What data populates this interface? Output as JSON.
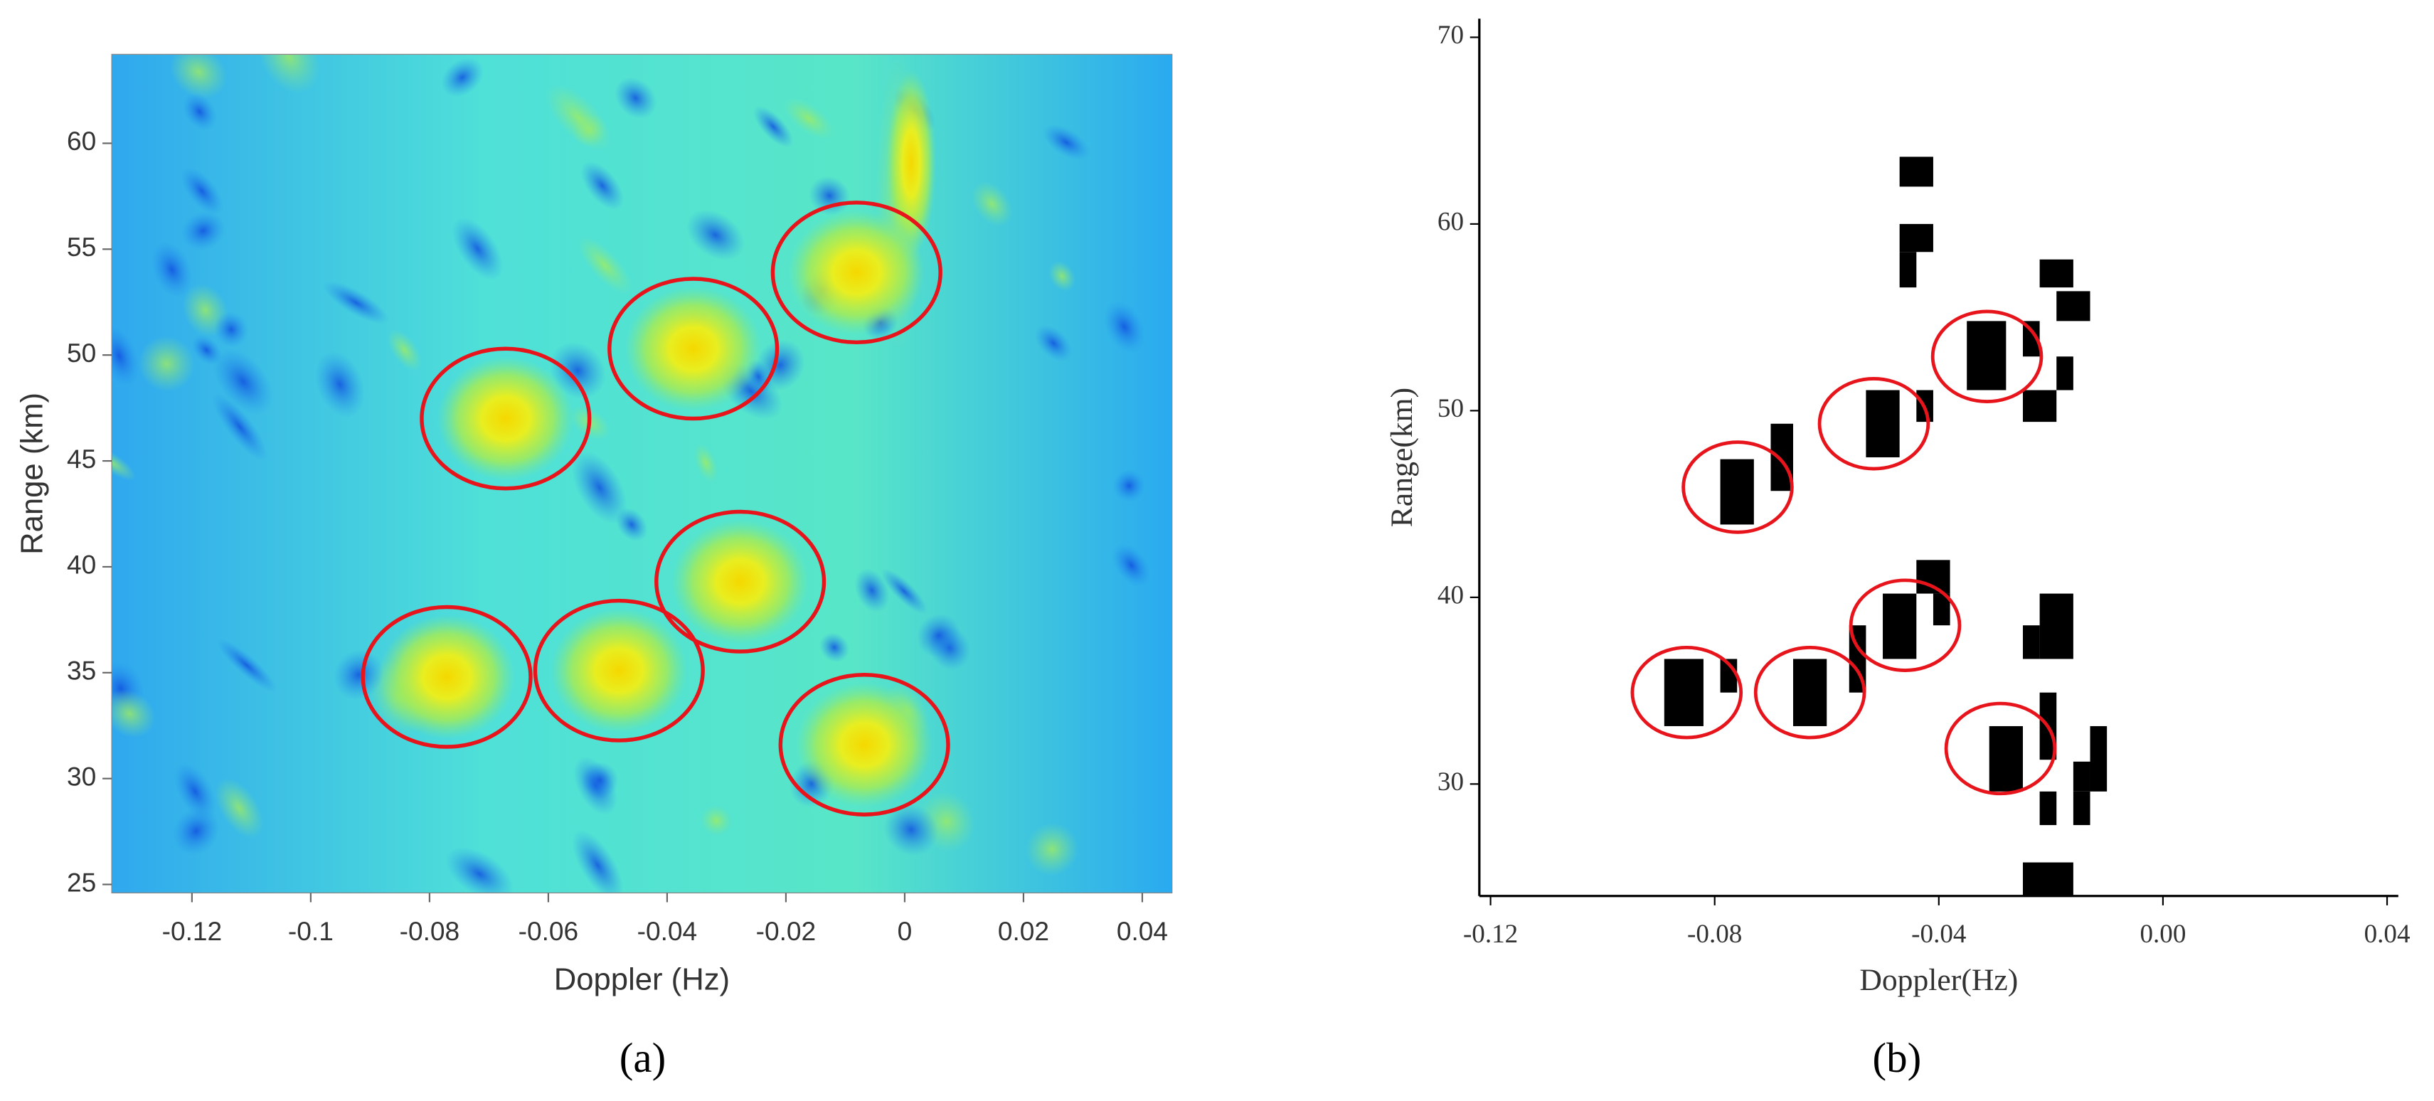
{
  "chart_data": [
    {
      "type": "heatmap",
      "panel": "(a)",
      "xlabel": "Doppler (Hz)",
      "ylabel": "Range (km)",
      "xlim": [
        -0.1335,
        0.045
      ],
      "ylim": [
        24.6,
        64.2
      ],
      "xticks": [
        -0.12,
        -0.1,
        -0.08,
        -0.06,
        -0.04,
        -0.02,
        0,
        0.02,
        0.04
      ],
      "yticks": [
        25,
        30,
        35,
        40,
        45,
        50,
        55,
        60
      ],
      "targets": {
        "x": [
          -0.0672,
          -0.0356,
          -0.0081,
          -0.0277,
          -0.0771,
          -0.0481,
          -0.0068
        ],
        "y": [
          47.0,
          50.3,
          53.9,
          39.3,
          34.8,
          35.1,
          31.6
        ]
      }
    },
    {
      "type": "cells",
      "panel": "(b)",
      "xlabel": "Doppler(Hz)",
      "ylabel": "Range(km)",
      "xlim": [
        -0.122,
        0.042
      ],
      "ylim": [
        24,
        71
      ],
      "xticks": [
        -0.12,
        -0.08,
        -0.04,
        {
          "value": 0,
          "label": "0.00"
        },
        0.04
      ],
      "yticks": [
        30,
        40,
        50,
        60,
        70
      ],
      "cells": [
        [
          -0.047,
          -0.041,
          62.0,
          63.6
        ],
        [
          -0.047,
          -0.041,
          58.5,
          60.0
        ],
        [
          -0.047,
          -0.044,
          56.6,
          58.5
        ],
        [
          -0.022,
          -0.016,
          56.6,
          58.1
        ],
        [
          -0.019,
          -0.013,
          54.8,
          56.4
        ],
        [
          -0.035,
          -0.028,
          51.1,
          54.8
        ],
        [
          -0.025,
          -0.022,
          52.9,
          54.8
        ],
        [
          -0.019,
          -0.016,
          51.1,
          52.9
        ],
        [
          -0.025,
          -0.019,
          49.4,
          51.1
        ],
        [
          -0.053,
          -0.047,
          47.5,
          51.1
        ],
        [
          -0.044,
          -0.041,
          49.4,
          51.1
        ],
        [
          -0.07,
          -0.066,
          45.7,
          49.3
        ],
        [
          -0.079,
          -0.073,
          43.9,
          47.4
        ],
        [
          -0.044,
          -0.038,
          40.2,
          42.0
        ],
        [
          -0.041,
          -0.038,
          38.5,
          40.2
        ],
        [
          -0.05,
          -0.044,
          36.7,
          40.2
        ],
        [
          -0.022,
          -0.016,
          36.7,
          40.2
        ],
        [
          -0.025,
          -0.022,
          36.7,
          38.5
        ],
        [
          -0.056,
          -0.053,
          34.9,
          38.5
        ],
        [
          -0.079,
          -0.076,
          34.9,
          36.7
        ],
        [
          -0.089,
          -0.082,
          33.1,
          36.7
        ],
        [
          -0.066,
          -0.06,
          33.1,
          36.7
        ],
        [
          -0.022,
          -0.019,
          31.3,
          34.9
        ],
        [
          -0.031,
          -0.025,
          29.6,
          33.1
        ],
        [
          -0.013,
          -0.01,
          29.6,
          33.1
        ],
        [
          -0.016,
          -0.013,
          29.6,
          31.2
        ],
        [
          -0.016,
          -0.013,
          27.8,
          29.6
        ],
        [
          -0.022,
          -0.019,
          27.8,
          29.6
        ],
        [
          -0.025,
          -0.016,
          24.0,
          25.8
        ]
      ],
      "targets": {
        "x": [
          -0.0759,
          -0.0516,
          -0.0314,
          -0.085,
          -0.063,
          -0.046,
          -0.029
        ],
        "y": [
          45.9,
          49.3,
          52.9,
          34.9,
          34.9,
          38.5,
          31.9
        ]
      }
    }
  ]
}
